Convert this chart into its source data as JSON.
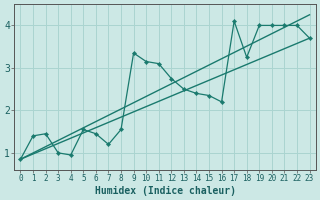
{
  "xlabel": "Humidex (Indice chaleur)",
  "background_color": "#cce8e5",
  "line_color": "#1a7a6e",
  "grid_color": "#aad4d0",
  "xlim": [
    -0.5,
    23.5
  ],
  "ylim": [
    0.6,
    4.5
  ],
  "xticks": [
    0,
    1,
    2,
    3,
    4,
    5,
    6,
    7,
    8,
    9,
    10,
    11,
    12,
    13,
    14,
    15,
    16,
    17,
    18,
    19,
    20,
    21,
    22,
    23
  ],
  "yticks": [
    1,
    2,
    3,
    4
  ],
  "line1_x": [
    0,
    1,
    2,
    3,
    4,
    5,
    6,
    7,
    8,
    9,
    10,
    11,
    12,
    13,
    14,
    15,
    16,
    17,
    18,
    19,
    20,
    21,
    22,
    23
  ],
  "line1_y": [
    0.85,
    1.4,
    1.45,
    1.0,
    0.95,
    1.55,
    1.45,
    1.2,
    1.55,
    3.35,
    3.15,
    3.1,
    2.75,
    2.5,
    2.4,
    2.35,
    2.2,
    4.1,
    3.25,
    4.0,
    4.0,
    4.0,
    4.0,
    3.7
  ],
  "line2_x": [
    0,
    23
  ],
  "line2_y": [
    0.85,
    3.7
  ],
  "line3_x": [
    0,
    23
  ],
  "line3_y": [
    0.85,
    4.25
  ],
  "xlabel_fontsize": 7,
  "tick_fontsize": 5.5,
  "ytick_fontsize": 7
}
